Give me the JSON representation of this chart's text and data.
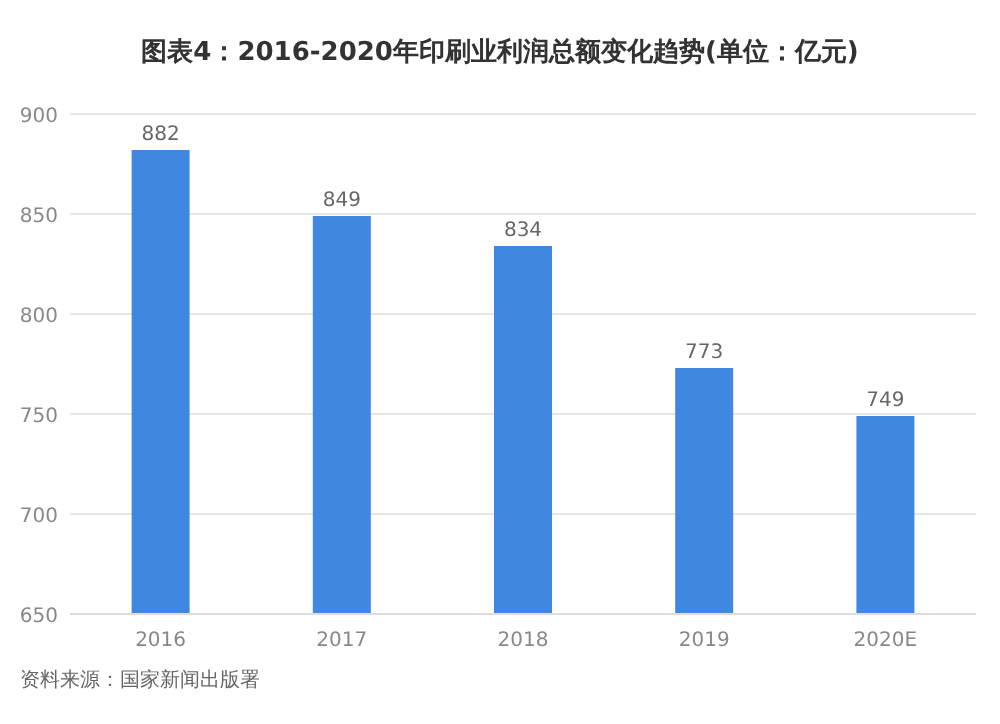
{
  "chart_data": {
    "type": "bar",
    "title": "图表4：2016-2020年印刷业利润总额变化趋势(单位：亿元)",
    "categories": [
      "2016",
      "2017",
      "2018",
      "2019",
      "2020E"
    ],
    "values": [
      882,
      849,
      834,
      773,
      749
    ],
    "color": "#3f87e0",
    "ylim": [
      650,
      900
    ],
    "yticks": [
      650,
      700,
      750,
      800,
      850,
      900
    ],
    "grid": "y",
    "data_labels": true,
    "annotations": [
      "资料来源：国家新闻出版署"
    ]
  }
}
